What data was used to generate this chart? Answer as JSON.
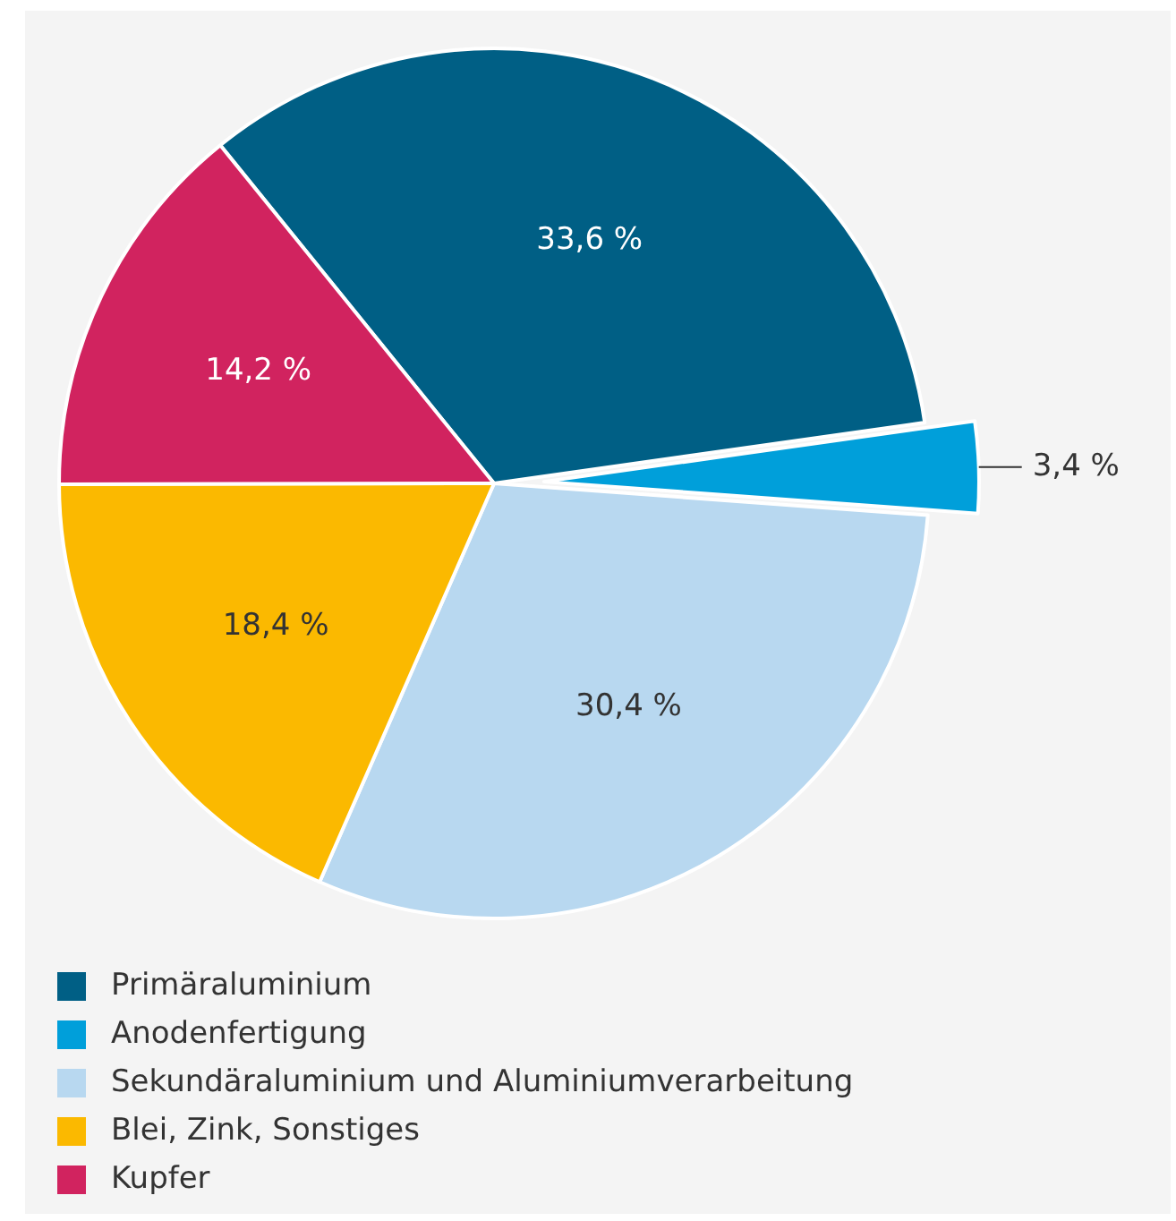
{
  "chart_data": {
    "type": "pie",
    "categories": [
      "Primäraluminium",
      "Anodenfertigung",
      "Sekundäraluminium und Aluminiumverarbeitung",
      "Blei, Zink, Sonstiges",
      "Kupfer"
    ],
    "values": [
      33.6,
      3.4,
      30.4,
      18.4,
      14.2
    ],
    "value_labels": [
      "33,6 %",
      "3,4 %",
      "30,4 %",
      "18,4 %",
      "14,2 %"
    ],
    "colors": [
      "#005f85",
      "#009fda",
      "#b8d8f0",
      "#fbb900",
      "#d1235f"
    ],
    "legend": "bottom"
  }
}
